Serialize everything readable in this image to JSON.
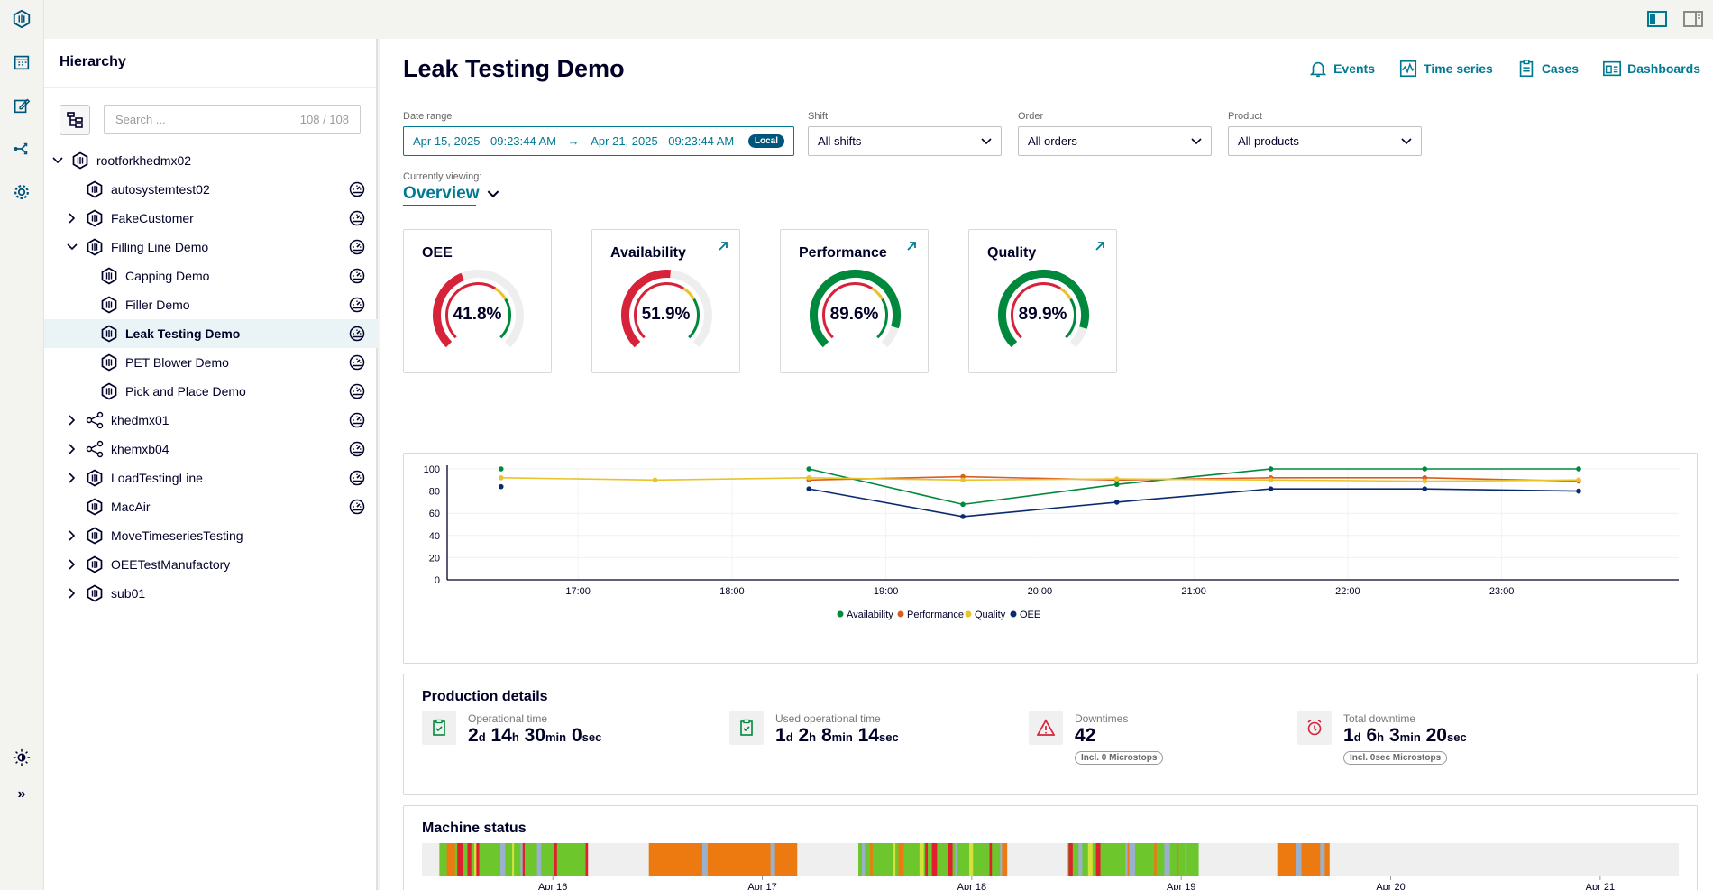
{
  "app": {
    "colors": {
      "accent": "#007993",
      "navy": "#000028",
      "green": "#00893d",
      "red": "#d72339",
      "yellow": "#e9c32a",
      "orange": "#d95d1e"
    }
  },
  "top": {
    "icons": [
      "sidebar-layout-icon",
      "panel-right-icon"
    ]
  },
  "hierarchy": {
    "title": "Hierarchy",
    "search_placeholder": "Search ...",
    "search_count": "108 / 108",
    "nodes": [
      {
        "label": "rootforkhedmx02",
        "level": 0,
        "chevron": "down",
        "icon": "asset",
        "gauge": false
      },
      {
        "label": "autosystemtest02",
        "level": 1,
        "chevron": "none",
        "icon": "asset",
        "gauge": true
      },
      {
        "label": "FakeCustomer",
        "level": 1,
        "chevron": "right",
        "icon": "asset",
        "gauge": true
      },
      {
        "label": "Filling Line Demo",
        "level": 1,
        "chevron": "down",
        "icon": "asset",
        "gauge": true
      },
      {
        "label": "Capping Demo",
        "level": 2,
        "chevron": "none",
        "icon": "asset",
        "gauge": true
      },
      {
        "label": "Filler Demo",
        "level": 2,
        "chevron": "none",
        "icon": "asset",
        "gauge": true
      },
      {
        "label": "Leak Testing Demo",
        "level": 2,
        "chevron": "none",
        "icon": "asset",
        "gauge": true,
        "selected": true
      },
      {
        "label": "PET Blower Demo",
        "level": 2,
        "chevron": "none",
        "icon": "asset",
        "gauge": true
      },
      {
        "label": "Pick and Place Demo",
        "level": 2,
        "chevron": "none",
        "icon": "asset",
        "gauge": true
      },
      {
        "label": "khedmx01",
        "level": 1,
        "chevron": "right",
        "icon": "share",
        "gauge": true
      },
      {
        "label": "khemxb04",
        "level": 1,
        "chevron": "right",
        "icon": "share",
        "gauge": true
      },
      {
        "label": "LoadTestingLine",
        "level": 1,
        "chevron": "right",
        "icon": "asset",
        "gauge": true
      },
      {
        "label": "MacAir",
        "level": 1,
        "chevron": "none",
        "icon": "asset",
        "gauge": true
      },
      {
        "label": "MoveTimeseriesTesting",
        "level": 1,
        "chevron": "right",
        "icon": "asset",
        "gauge": false
      },
      {
        "label": "OEETestManufactory",
        "level": 1,
        "chevron": "right",
        "icon": "asset",
        "gauge": false
      },
      {
        "label": "sub01",
        "level": 1,
        "chevron": "right",
        "icon": "asset",
        "gauge": false
      }
    ]
  },
  "page": {
    "title": "Leak Testing Demo"
  },
  "nav": {
    "events": "Events",
    "time_series": "Time series",
    "cases": "Cases",
    "dashboards": "Dashboards"
  },
  "filters": {
    "date_label": "Date range",
    "date_from": "Apr 15, 2025 - 09:23:44 AM",
    "date_to": "Apr 21, 2025 - 09:23:44 AM",
    "local_badge": "Local",
    "shift_label": "Shift",
    "shift_value": "All shifts",
    "order_label": "Order",
    "order_value": "All orders",
    "product_label": "Product",
    "product_value": "All products"
  },
  "viewing": {
    "label": "Currently viewing:",
    "value": "Overview"
  },
  "kpis": [
    {
      "title": "OEE",
      "value": "41.8%",
      "outer": 0.418,
      "inner": 0.42,
      "link": false
    },
    {
      "title": "Availability",
      "value": "51.9%",
      "outer": 0.519,
      "inner": 0.52,
      "link": true
    },
    {
      "title": "Performance",
      "value": "89.6%",
      "outer": 0.896,
      "inner": 0.9,
      "link": true
    },
    {
      "title": "Quality",
      "value": "89.9%",
      "outer": 0.899,
      "inner": 0.9,
      "link": true
    }
  ],
  "chart_data": {
    "type": "line",
    "x": [
      "16:30",
      "17:30",
      "18:30",
      "19:30",
      "20:30",
      "21:30",
      "22:30",
      "23:30"
    ],
    "x_hours": [
      16.5,
      17.5,
      18.5,
      19.5,
      20.5,
      21.5,
      22.5,
      23.5
    ],
    "xticks": [
      "17:00",
      "18:00",
      "19:00",
      "20:00",
      "21:00",
      "22:00",
      "23:00"
    ],
    "xtick_hours": [
      17,
      18,
      19,
      20,
      21,
      22,
      23
    ],
    "xlim": [
      16.15,
      24.15
    ],
    "ylim": [
      0,
      100
    ],
    "yticks": [
      0,
      20,
      40,
      60,
      80,
      100
    ],
    "series": [
      {
        "name": "Availability",
        "color": "#00893d",
        "values": [
          100,
          null,
          100,
          68,
          86,
          100,
          100,
          100
        ]
      },
      {
        "name": "Performance",
        "color": "#d95d1e",
        "values": [
          null,
          null,
          90,
          93,
          90,
          92,
          92,
          89
        ]
      },
      {
        "name": "Quality",
        "color": "#e9c32a",
        "values": [
          92,
          90,
          92,
          90,
          91,
          90,
          89,
          90
        ]
      },
      {
        "name": "OEE",
        "color": "#0a2a6e",
        "values": [
          84,
          null,
          82,
          57,
          70,
          82,
          82,
          80
        ]
      }
    ]
  },
  "production": {
    "title": "Production details",
    "items": [
      {
        "label": "Operational time",
        "parts": [
          [
            "2",
            "d"
          ],
          [
            "14",
            "h"
          ],
          [
            "30",
            "min"
          ],
          [
            "0",
            "sec"
          ]
        ],
        "icon": "clipboard-check-icon",
        "pill": ""
      },
      {
        "label": "Used operational time",
        "parts": [
          [
            "1",
            "d"
          ],
          [
            "2",
            "h"
          ],
          [
            "8",
            "min"
          ],
          [
            "14",
            "sec"
          ]
        ],
        "icon": "clipboard-check-icon",
        "pill": ""
      },
      {
        "label": "Downtimes",
        "parts": [
          [
            "42",
            ""
          ]
        ],
        "icon": "warning-icon",
        "pill": "Incl. 0 Microstops"
      },
      {
        "label": "Total downtime",
        "parts": [
          [
            "1",
            "d"
          ],
          [
            "6",
            "h"
          ],
          [
            "3",
            "min"
          ],
          [
            "20",
            "sec"
          ]
        ],
        "icon": "alarm-icon",
        "pill": "Incl. 0sec Microstops"
      }
    ]
  },
  "machine_status": {
    "title": "Machine status",
    "day_labels": [
      "Apr 16",
      "Apr 17",
      "Apr 18",
      "Apr 19",
      "Apr 20",
      "Apr 21"
    ],
    "span_hours": [
      0,
      144
    ],
    "day_start_hours": [
      15,
      39,
      63,
      87,
      111,
      135
    ],
    "blocks": [
      {
        "start": 2,
        "end": 19,
        "state": "green"
      },
      {
        "start": 26,
        "end": 43,
        "state": "orange"
      },
      {
        "start": 50,
        "end": 67,
        "state": "green"
      },
      {
        "start": 74,
        "end": 89,
        "state": "green"
      },
      {
        "start": 98,
        "end": 104,
        "state": "orange"
      }
    ],
    "state_colors": {
      "green": "#6cc62c",
      "orange": "#ec7a10",
      "idle": "#efefef",
      "blue": "#9bb0cc",
      "red": "#e0202e",
      "yellow": "#d7e13c"
    }
  }
}
